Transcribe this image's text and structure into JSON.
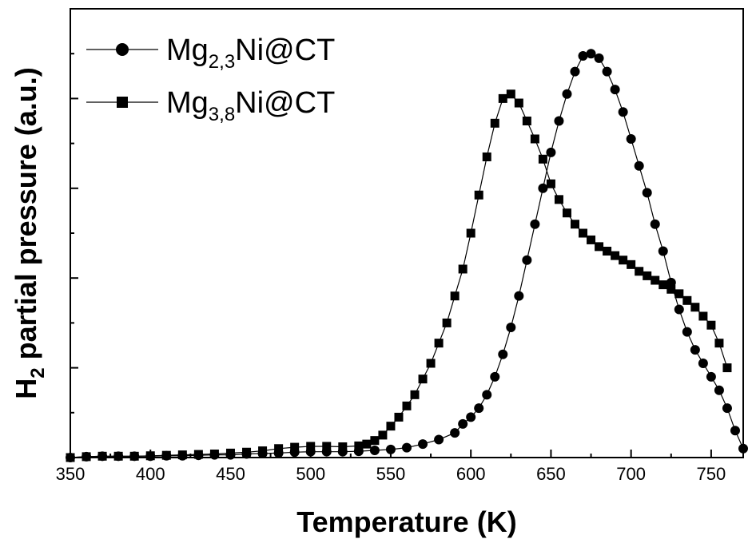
{
  "chart_data": {
    "type": "scatter",
    "xlabel": "Temperature (K)",
    "ylabel_main": "H",
    "ylabel_sub": "2",
    "ylabel_rest": " partial pressure (a.u.)",
    "xlim": [
      350,
      770
    ],
    "ylim": [
      0,
      1
    ],
    "y_tick_labels_shown": false,
    "grid": false,
    "legend_position": "top-left",
    "x_ticks": [
      350,
      400,
      450,
      500,
      550,
      600,
      650,
      700,
      750
    ],
    "x_tick_labels": [
      "350",
      "400",
      "450",
      "500",
      "550",
      "600",
      "650",
      "700",
      "750"
    ],
    "series": [
      {
        "name_main": "Mg",
        "name_sub": "2,3",
        "name_rest": "Ni@CT",
        "marker": "circle",
        "x": [
          350,
          360,
          370,
          380,
          390,
          400,
          410,
          420,
          430,
          440,
          450,
          460,
          470,
          480,
          490,
          500,
          510,
          520,
          530,
          540,
          550,
          560,
          570,
          580,
          590,
          595,
          600,
          605,
          610,
          615,
          620,
          625,
          630,
          635,
          640,
          645,
          650,
          655,
          660,
          665,
          670,
          675,
          680,
          685,
          690,
          695,
          700,
          705,
          710,
          715,
          720,
          725,
          730,
          735,
          740,
          745,
          750,
          755,
          760,
          765,
          770
        ],
        "y": [
          0.0,
          0.002,
          0.003,
          0.003,
          0.003,
          0.003,
          0.004,
          0.004,
          0.005,
          0.006,
          0.006,
          0.008,
          0.009,
          0.01,
          0.012,
          0.013,
          0.013,
          0.013,
          0.014,
          0.016,
          0.018,
          0.022,
          0.03,
          0.04,
          0.055,
          0.075,
          0.09,
          0.11,
          0.14,
          0.18,
          0.23,
          0.29,
          0.36,
          0.44,
          0.52,
          0.6,
          0.68,
          0.75,
          0.81,
          0.86,
          0.895,
          0.9,
          0.89,
          0.86,
          0.82,
          0.77,
          0.71,
          0.65,
          0.59,
          0.52,
          0.46,
          0.39,
          0.33,
          0.28,
          0.24,
          0.21,
          0.18,
          0.15,
          0.11,
          0.06,
          0.02
        ]
      },
      {
        "name_main": "Mg",
        "name_sub": "3,8",
        "name_rest": "Ni@CT",
        "marker": "square",
        "x": [
          350,
          360,
          370,
          380,
          390,
          400,
          410,
          420,
          430,
          440,
          450,
          460,
          470,
          480,
          490,
          500,
          510,
          520,
          530,
          535,
          540,
          545,
          550,
          555,
          560,
          565,
          570,
          575,
          580,
          585,
          590,
          595,
          600,
          605,
          610,
          615,
          620,
          625,
          630,
          635,
          640,
          645,
          650,
          655,
          660,
          665,
          670,
          675,
          680,
          685,
          690,
          695,
          700,
          705,
          710,
          715,
          720,
          725,
          730,
          735,
          740,
          745,
          750,
          755,
          760
        ],
        "y": [
          0.0,
          0.002,
          0.003,
          0.003,
          0.003,
          0.004,
          0.005,
          0.006,
          0.007,
          0.008,
          0.01,
          0.012,
          0.015,
          0.02,
          0.023,
          0.025,
          0.025,
          0.024,
          0.026,
          0.03,
          0.038,
          0.05,
          0.07,
          0.09,
          0.115,
          0.14,
          0.175,
          0.21,
          0.255,
          0.3,
          0.36,
          0.42,
          0.5,
          0.585,
          0.67,
          0.745,
          0.8,
          0.81,
          0.79,
          0.75,
          0.71,
          0.665,
          0.61,
          0.575,
          0.545,
          0.52,
          0.5,
          0.485,
          0.47,
          0.46,
          0.45,
          0.44,
          0.43,
          0.415,
          0.405,
          0.395,
          0.385,
          0.375,
          0.365,
          0.35,
          0.335,
          0.315,
          0.295,
          0.255,
          0.2
        ]
      }
    ]
  }
}
